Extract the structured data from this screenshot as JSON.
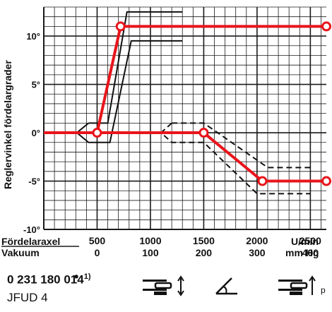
{
  "chart_data": {
    "type": "line",
    "ylabel": "Reglervinkel fördelargrader",
    "ylim": [
      -10,
      13
    ],
    "xlim": [
      0,
      2650
    ],
    "y_ticks": [
      {
        "value": 10,
        "label": "10°"
      },
      {
        "value": 5,
        "label": "5°"
      },
      {
        "value": 0,
        "label": "0°"
      },
      {
        "value": -5,
        "label": "-5°"
      },
      {
        "value": -10,
        "label": "-10°"
      }
    ],
    "x_axis_rows": [
      {
        "name": "Fördelaraxel",
        "unit": "U/min",
        "ticks": [
          "500",
          "1000",
          "1500",
          "2000",
          "2500"
        ],
        "positions": [
          500,
          1000,
          1500,
          2000,
          2500
        ]
      },
      {
        "name": "Vakuum",
        "unit": "mm Hg",
        "ticks": [
          "0",
          "100",
          "200",
          "300",
          "400"
        ],
        "positions": [
          500,
          1000,
          1500,
          2000,
          2500
        ]
      }
    ],
    "grid": true,
    "series": [
      {
        "color": "#e8151b",
        "points": [
          [
            0,
            0
          ],
          [
            500,
            0
          ],
          [
            720,
            11
          ],
          [
            2650,
            11
          ]
        ],
        "markers": [
          [
            500,
            0
          ],
          [
            720,
            11
          ],
          [
            2650,
            11
          ]
        ]
      },
      {
        "color": "#e8151b",
        "points": [
          [
            0,
            0
          ],
          [
            1500,
            0
          ],
          [
            2050,
            -5
          ],
          [
            2650,
            -5
          ]
        ],
        "markers": [
          [
            1500,
            0
          ],
          [
            2050,
            -5
          ],
          [
            2650,
            -5
          ]
        ]
      }
    ],
    "tolerance_bands": [
      {
        "style": "solid",
        "points": [
          [
            420,
            1
          ],
          [
            600,
            1
          ],
          [
            780,
            12.5
          ],
          [
            1300,
            12.5
          ]
        ]
      },
      {
        "style": "solid",
        "points": [
          [
            420,
            1
          ],
          [
            310,
            0
          ],
          [
            420,
            -1
          ],
          [
            620,
            -1
          ],
          [
            820,
            9.5
          ],
          [
            1300,
            9.5
          ]
        ]
      },
      {
        "style": "dashed",
        "points": [
          [
            1200,
            1
          ],
          [
            1500,
            1
          ],
          [
            2100,
            -3.6
          ],
          [
            2500,
            -3.6
          ]
        ]
      },
      {
        "style": "dashed",
        "points": [
          [
            1200,
            1
          ],
          [
            1100,
            0
          ],
          [
            1200,
            -1
          ],
          [
            1500,
            -1
          ],
          [
            2000,
            -6.3
          ],
          [
            2500,
            -6.3
          ]
        ]
      }
    ]
  },
  "part_number": "0 231 180 014",
  "footnote_mark": "1)",
  "model": "JFUD 4",
  "icon_label": "p",
  "icons": [
    "adjust-screw-icon",
    "angle-icon",
    "pressure-screw-icon"
  ],
  "colors": {
    "curve": "#e8151b",
    "grid": "#1a1a1a"
  }
}
